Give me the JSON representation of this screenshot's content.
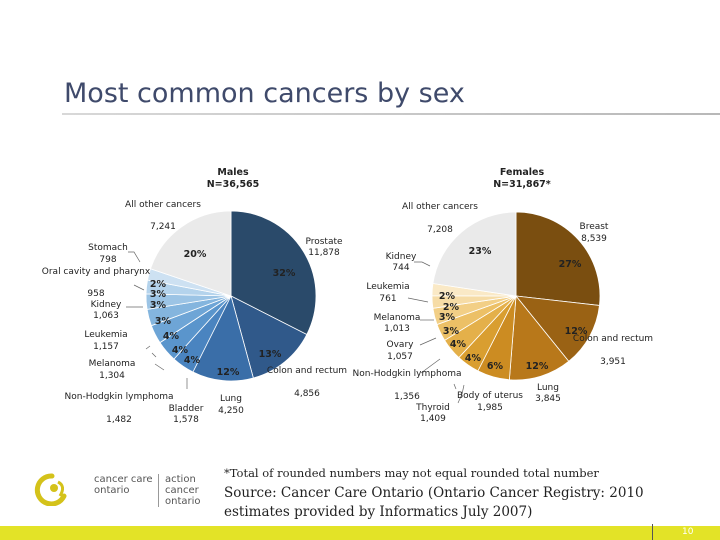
{
  "title": "Most common cancers by sex",
  "footnote": "*Total of rounded numbers may not equal rounded total number",
  "source": "Source: Cancer Care Ontario (Ontario Cancer Registry: 2010 estimates provided by Informatics July 2007)",
  "logo": {
    "text_en_1": "cancer care",
    "text_en_2": "ontario",
    "text_fr_1": "action cancer",
    "text_fr_2": "ontario"
  },
  "page_number": "10",
  "colors": {
    "bar": "#e3e327",
    "title": "#3f4a6b",
    "logo": "#d4c21a"
  },
  "chart_data": [
    {
      "type": "pie",
      "title": "Males",
      "subtitle": "N=36,565",
      "categories": [
        "Prostate",
        "Colon and rectum",
        "Lung",
        "Bladder",
        "Non-Hodgkin lymphoma",
        "Melanoma",
        "Leukemia",
        "Kidney",
        "Oral cavity and pharynx",
        "Stomach",
        "All other cancers"
      ],
      "count_labels": [
        "11,878",
        "4,856",
        "4,250",
        "1,578",
        "1,482",
        "1,304",
        "1,157",
        "1,063",
        "958",
        "798",
        "7,241"
      ],
      "values": [
        11878,
        4856,
        4250,
        1578,
        1482,
        1304,
        1157,
        1063,
        958,
        798,
        7241
      ],
      "percent_labels": [
        "32%",
        "13%",
        "12%",
        "4%",
        "4%",
        "4%",
        "3%",
        "3%",
        "3%",
        "2%",
        "20%"
      ],
      "colors": [
        "#2a4a6a",
        "#30598a",
        "#3a6ea8",
        "#4a84c0",
        "#5a95cc",
        "#6ea5d6",
        "#84b5de",
        "#9cc4e5",
        "#b4d3ec",
        "#cde1f2",
        "#eaeaea"
      ]
    },
    {
      "type": "pie",
      "title": "Females",
      "subtitle": "N=31,867*",
      "categories": [
        "Breast",
        "Colon and rectum",
        "Lung",
        "Body of uterus",
        "Thyroid",
        "Non-Hodgkin lymphoma",
        "Ovary",
        "Melanoma",
        "Leukemia",
        "Kidney",
        "All other cancers"
      ],
      "count_labels": [
        "8,539",
        "3,951",
        "3,845",
        "1,985",
        "1,409",
        "1,356",
        "1,057",
        "1,013",
        "761",
        "744",
        "7,208"
      ],
      "values": [
        8539,
        3951,
        3845,
        1985,
        1409,
        1356,
        1057,
        1013,
        761,
        744,
        7208
      ],
      "percent_labels": [
        "27%",
        "12%",
        "12%",
        "6%",
        "4%",
        "4%",
        "3%",
        "3%",
        "2%",
        "2%",
        "23%"
      ],
      "colors": [
        "#7a4e10",
        "#9a6214",
        "#b8781a",
        "#cc8c22",
        "#d99e30",
        "#e4b04a",
        "#ecc066",
        "#f2cf86",
        "#f6dca6",
        "#fae9c6",
        "#eaeaea"
      ]
    }
  ]
}
